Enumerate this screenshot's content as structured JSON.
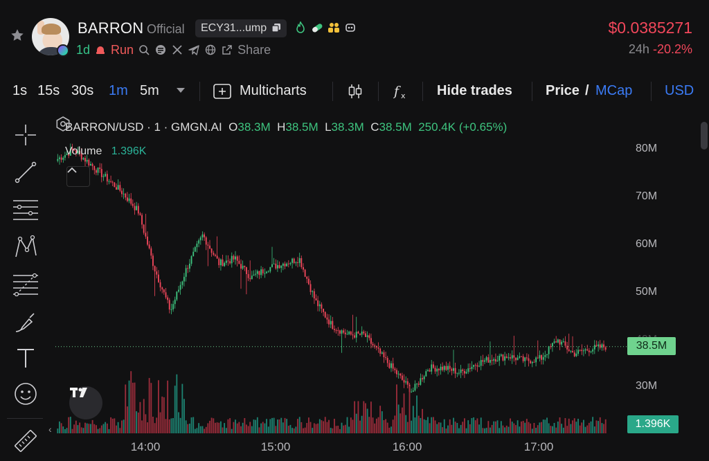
{
  "header": {
    "token_name": "BARRON",
    "official_label": "Official",
    "address": "ECY31...ump",
    "age": "1d",
    "run_label": "Run",
    "share_label": "Share",
    "price": "$0.0385271",
    "change_label": "24h",
    "change_value": "-20.2%"
  },
  "toolbar": {
    "intervals": [
      "1s",
      "15s",
      "30s",
      "1m",
      "5m"
    ],
    "active_interval": "1m",
    "multicharts_label": "Multicharts",
    "hide_trades_label": "Hide trades",
    "price_label": "Price",
    "slash": "/",
    "mcap_label": "MCap",
    "currency_label": "USD"
  },
  "chart": {
    "symbol_line": "BARRON/USD · 1 · GMGN.AI",
    "ohlc": {
      "o_label": "O",
      "o": "38.3M",
      "h_label": "H",
      "h": "38.5M",
      "l_label": "L",
      "l": "38.3M",
      "c_label": "C",
      "c": "38.5M",
      "change": "250.4K (+0.65%)"
    },
    "volume_label": "Volume",
    "volume_value": "1.396K",
    "price_tag": "38.5M",
    "volume_tag": "1.396K",
    "y_ticks": [
      "80M",
      "70M",
      "60M",
      "50M",
      "40M",
      "30M"
    ],
    "x_ticks": [
      "14:00",
      "15:00",
      "16:00",
      "17:00"
    ],
    "colors": {
      "up": "#3ec47f",
      "down": "#f2475b",
      "volume_up": "#1f8f7c",
      "volume_down": "#a8303f"
    }
  },
  "chart_data": {
    "type": "candlestick",
    "title": "BARRON/USD · 1 · GMGN.AI",
    "xlabel": "",
    "ylabel": "",
    "ylim": [
      25,
      82
    ],
    "x": [
      "13:35",
      "13:40",
      "13:45",
      "13:50",
      "13:55",
      "14:00",
      "14:03",
      "14:06",
      "14:10",
      "14:15",
      "14:20",
      "14:25",
      "14:30",
      "14:40",
      "14:50",
      "15:00",
      "15:10",
      "15:20",
      "15:30",
      "15:40",
      "15:45",
      "15:50",
      "15:55",
      "16:00",
      "16:10",
      "16:20",
      "16:30",
      "16:40",
      "16:50",
      "17:00",
      "17:10",
      "17:15",
      "17:20",
      "17:30",
      "17:35"
    ],
    "close": [
      78,
      80,
      77,
      74,
      71,
      67,
      55,
      46,
      55,
      62,
      56,
      57,
      53,
      55,
      56,
      57,
      48,
      43,
      41,
      41,
      37,
      33,
      29,
      34,
      34,
      33,
      35,
      36,
      36.5,
      35.5,
      36,
      40,
      37,
      38,
      38.5
    ],
    "volume_label": "Volume",
    "last_volume": "1.396K"
  }
}
